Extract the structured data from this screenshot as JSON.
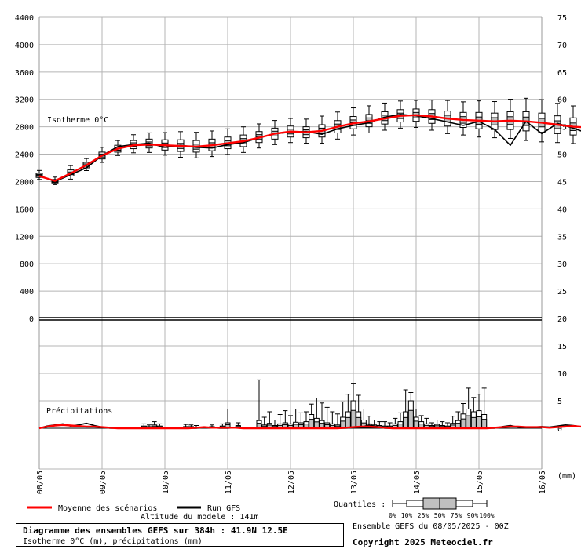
{
  "chart_data": {
    "type": "line",
    "left_axis_ticks": [
      "4400",
      "4000",
      "3600",
      "3200",
      "2800",
      "2400",
      "2000",
      "1600",
      "1200",
      "800",
      "400",
      "0"
    ],
    "right_axis_ticks": [
      "75",
      "70",
      "65",
      "60",
      "55",
      "50",
      "45",
      "40",
      "35",
      "30",
      "25",
      "20",
      "15",
      "10",
      "5",
      "0"
    ],
    "x_tick_labels": [
      "08/05",
      "09/05",
      "10/05",
      "11/05",
      "12/05",
      "13/05",
      "14/05",
      "15/05",
      "16/05"
    ],
    "x_unit": "(mm)",
    "iso_label": "Isotherme 0°C",
    "precip_label": "Précipitations",
    "iso_range": [
      0,
      4400
    ],
    "precip_range": [
      0,
      20
    ],
    "iso_step_hours": 6,
    "iso_mean": [
      2080,
      2010,
      2120,
      2240,
      2380,
      2480,
      2530,
      2540,
      2530,
      2520,
      2510,
      2530,
      2560,
      2590,
      2640,
      2700,
      2730,
      2720,
      2740,
      2800,
      2850,
      2880,
      2920,
      2960,
      2970,
      2950,
      2920,
      2900,
      2890,
      2880,
      2890,
      2880,
      2860,
      2830,
      2800,
      2790,
      2800,
      2800,
      2800,
      2790,
      2780,
      2760,
      2720,
      2690,
      2690,
      2710,
      2730,
      2750,
      2760,
      2760,
      2750,
      2740,
      2750,
      2760,
      2780,
      2800,
      2820,
      2840,
      2830,
      2790,
      2750,
      2720,
      2710,
      2710,
      2720,
      2710,
      2700,
      2680
    ],
    "iso_run": [
      2090,
      2000,
      2100,
      2200,
      2380,
      2510,
      2540,
      2560,
      2500,
      2530,
      2500,
      2490,
      2540,
      2570,
      2640,
      2700,
      2720,
      2730,
      2690,
      2770,
      2820,
      2860,
      2940,
      2980,
      2960,
      2920,
      2870,
      2820,
      2880,
      2760,
      2530,
      2880,
      2700,
      2850,
      2780,
      2700,
      2790,
      2760,
      2740,
      2740,
      2720,
      2700,
      2640,
      2550,
      2490,
      2550,
      2580,
      2650,
      2700,
      2800,
      2870,
      2840,
      2850,
      2720,
      2800,
      2920,
      2960,
      3050,
      2960,
      3000,
      2860,
      2680,
      2530,
      2500,
      2540,
      2560,
      2560,
      2560
    ],
    "iso_boxes": [
      [
        2090,
        2060,
        2120
      ],
      [
        2000,
        1980,
        2030
      ],
      [
        2120,
        2080,
        2170
      ],
      [
        2240,
        2200,
        2280
      ],
      [
        2380,
        2330,
        2430
      ],
      [
        2480,
        2430,
        2530
      ],
      [
        2540,
        2480,
        2600
      ],
      [
        2550,
        2490,
        2620
      ],
      [
        2530,
        2460,
        2610
      ],
      [
        2520,
        2440,
        2610
      ],
      [
        2510,
        2430,
        2600
      ],
      [
        2530,
        2450,
        2620
      ],
      [
        2560,
        2480,
        2650
      ],
      [
        2590,
        2510,
        2680
      ],
      [
        2650,
        2570,
        2730
      ],
      [
        2700,
        2620,
        2780
      ],
      [
        2730,
        2650,
        2810
      ],
      [
        2720,
        2640,
        2800
      ],
      [
        2740,
        2650,
        2830
      ],
      [
        2800,
        2710,
        2890
      ],
      [
        2860,
        2770,
        2950
      ],
      [
        2890,
        2800,
        2980
      ],
      [
        2930,
        2840,
        3020
      ],
      [
        2960,
        2870,
        3050
      ],
      [
        2970,
        2880,
        3060
      ],
      [
        2950,
        2850,
        3050
      ],
      [
        2920,
        2810,
        3030
      ],
      [
        2900,
        2790,
        3010
      ],
      [
        2890,
        2770,
        3010
      ],
      [
        2880,
        2760,
        3000
      ],
      [
        2890,
        2760,
        3020
      ],
      [
        2880,
        2740,
        3020
      ],
      [
        2860,
        2720,
        3000
      ],
      [
        2830,
        2700,
        2960
      ],
      [
        2800,
        2680,
        2930
      ],
      [
        2790,
        2670,
        2910
      ],
      [
        2800,
        2680,
        2920
      ],
      [
        2800,
        2680,
        2920
      ],
      [
        2800,
        2670,
        2930
      ],
      [
        2790,
        2660,
        2920
      ],
      [
        2780,
        2650,
        2910
      ],
      [
        2760,
        2620,
        2900
      ],
      [
        2720,
        2580,
        2860
      ],
      [
        2690,
        2540,
        2840
      ],
      [
        2690,
        2530,
        2850
      ],
      [
        2710,
        2540,
        2880
      ],
      [
        2730,
        2550,
        2910
      ],
      [
        2750,
        2560,
        2940
      ],
      [
        2760,
        2560,
        2960
      ],
      [
        2760,
        2550,
        2970
      ],
      [
        2750,
        2530,
        2970
      ],
      [
        2740,
        2520,
        2960
      ],
      [
        2750,
        2520,
        2980
      ],
      [
        2760,
        2530,
        2990
      ],
      [
        2780,
        2550,
        3010
      ],
      [
        2800,
        2570,
        3030
      ],
      [
        2820,
        2590,
        3050
      ],
      [
        2840,
        2610,
        3070
      ],
      [
        2830,
        2590,
        3070
      ],
      [
        2790,
        2550,
        3030
      ],
      [
        2750,
        2510,
        2990
      ],
      [
        2720,
        2480,
        2960
      ],
      [
        2710,
        2460,
        2960
      ],
      [
        2710,
        2460,
        2960
      ],
      [
        2720,
        2470,
        2970
      ],
      [
        2710,
        2460,
        2960
      ],
      [
        2700,
        2450,
        2950
      ],
      [
        2680,
        2430,
        2930
      ]
    ],
    "precip_step_hours": 3,
    "precip_mean": [
      0,
      0.3,
      0.5,
      0.6,
      0.5,
      0.4,
      0.3,
      0.3,
      0.2,
      0.1,
      0,
      0,
      0,
      0,
      0,
      0,
      0,
      0,
      0,
      0,
      0.1,
      0.2,
      0.1,
      0.1,
      0.1,
      0.1,
      0,
      0,
      0,
      0,
      0,
      0,
      0,
      0,
      0,
      0,
      0,
      0,
      0,
      0.1,
      0.2,
      0.3,
      0.3,
      0.2,
      0.1,
      0,
      0,
      0,
      0,
      0,
      0,
      0,
      0,
      0,
      0,
      0,
      0,
      0,
      0.1,
      0.2,
      0.3,
      0.3,
      0.2,
      0.2,
      0.2,
      0.1,
      0.2,
      0.3,
      0.4,
      0.3,
      0.3,
      0.2,
      0.3,
      0.5,
      0.8,
      1.0,
      0.9,
      0.7,
      0.4,
      0.3,
      0.3,
      0.3,
      0.3,
      0.3,
      0.3,
      0.2,
      0.3,
      0.6,
      1.6,
      1.9,
      1.2,
      0.6,
      0.3,
      0.2,
      0.1,
      0.1,
      0.1,
      0.1,
      0.2,
      0.3,
      0.5,
      0.9,
      1.2,
      0.8,
      0.5,
      0.3,
      0.1,
      0.1,
      0,
      0,
      0,
      0.1,
      0.2,
      0.5,
      1.0,
      1.3,
      1.1,
      0.8,
      0.5,
      0.3,
      0.2
    ],
    "precip_run": [
      0,
      0.4,
      0.6,
      0.8,
      0.4,
      0.6,
      0.9,
      0.5,
      0.2,
      0,
      0,
      0,
      0,
      0,
      0,
      0,
      0,
      0,
      0,
      0,
      0,
      0.2,
      0.1,
      0,
      0,
      0.1,
      0,
      0,
      0,
      0,
      0,
      0,
      0,
      0,
      0,
      0,
      0,
      0,
      0,
      0,
      0.1,
      0.2,
      0.6,
      0.3,
      0,
      0,
      0,
      0,
      0,
      0,
      0,
      0,
      0,
      0,
      0,
      0,
      0,
      0,
      0,
      0.3,
      0.5,
      0.2,
      0.1,
      0.2,
      0.3,
      0.2,
      0.4,
      0.6,
      0.5,
      0.3,
      0.2,
      0.1,
      0.3,
      0.8,
      1.5,
      2.2,
      1.6,
      0.6,
      0.3,
      0.3,
      0.3,
      0.3,
      0.2,
      0.2,
      0.1,
      0.1,
      0.4,
      1.0,
      2.0,
      3.2,
      3.0,
      2.0,
      1.2,
      0.5,
      0.2,
      0.1,
      0,
      0.1,
      0.2,
      0.4,
      0.6,
      1.0,
      1.3,
      0.7,
      0.4,
      0.2,
      0,
      0,
      0,
      0,
      0,
      0,
      0.3,
      0.8,
      2.4,
      3.3,
      1.6,
      0.8,
      0.3,
      0.3
    ],
    "precip_boxes": [
      [
        40,
        0.8,
        0,
        0.4
      ],
      [
        42,
        0.6,
        0,
        0.3
      ],
      [
        44,
        1.2,
        0,
        0.6
      ],
      [
        46,
        0.8,
        0,
        0.4
      ],
      [
        56,
        0.7,
        0,
        0.3
      ],
      [
        58,
        0.6,
        0,
        0.3
      ],
      [
        60,
        0.5,
        0,
        0.2
      ],
      [
        66,
        0.6,
        0,
        0.3
      ],
      [
        70,
        0.8,
        0,
        0.4
      ],
      [
        72,
        3.5,
        0,
        1.0
      ],
      [
        76,
        1.0,
        0,
        0.5
      ],
      [
        84,
        8.8,
        0,
        1.4
      ],
      [
        86,
        2.0,
        0,
        0.6
      ],
      [
        88,
        3.0,
        0,
        0.9
      ],
      [
        90,
        1.5,
        0,
        0.5
      ],
      [
        92,
        2.5,
        0,
        0.8
      ],
      [
        94,
        3.2,
        0,
        1.0
      ],
      [
        96,
        2.3,
        0,
        0.8
      ],
      [
        98,
        3.5,
        0,
        1.1
      ],
      [
        100,
        2.8,
        0,
        1.0
      ],
      [
        102,
        3.0,
        0,
        1.2
      ],
      [
        104,
        4.4,
        0,
        2.5
      ],
      [
        106,
        5.5,
        0,
        1.8
      ],
      [
        108,
        4.6,
        0,
        1.4
      ],
      [
        110,
        3.8,
        0,
        1.0
      ],
      [
        112,
        3.0,
        0,
        0.8
      ],
      [
        114,
        2.6,
        0,
        0.6
      ],
      [
        116,
        4.8,
        0,
        2.0
      ],
      [
        118,
        6.2,
        0,
        3.0
      ],
      [
        120,
        8.2,
        0,
        5.0
      ],
      [
        122,
        6.0,
        0,
        3.0
      ],
      [
        124,
        3.5,
        0,
        1.5
      ],
      [
        126,
        2.2,
        0,
        0.8
      ],
      [
        128,
        1.5,
        0,
        0.6
      ],
      [
        130,
        1.2,
        0,
        0.5
      ],
      [
        132,
        1.2,
        0,
        0.4
      ],
      [
        134,
        1.0,
        0,
        0.4
      ],
      [
        136,
        1.8,
        0,
        0.8
      ],
      [
        138,
        2.8,
        0,
        1.2
      ],
      [
        140,
        7.0,
        0,
        3.0
      ],
      [
        142,
        6.5,
        0,
        5.0
      ],
      [
        144,
        3.5,
        0,
        2.0
      ],
      [
        146,
        2.3,
        0,
        1.2
      ],
      [
        148,
        1.8,
        0,
        0.8
      ],
      [
        150,
        1.0,
        0,
        0.5
      ],
      [
        152,
        1.5,
        0,
        0.7
      ],
      [
        154,
        1.2,
        0,
        0.5
      ],
      [
        156,
        1.0,
        0,
        0.4
      ],
      [
        158,
        2.2,
        0,
        0.9
      ],
      [
        160,
        3.0,
        0,
        1.4
      ],
      [
        162,
        4.5,
        0,
        2.6
      ],
      [
        164,
        7.3,
        0,
        3.5
      ],
      [
        166,
        5.6,
        0,
        3.0
      ],
      [
        168,
        6.2,
        0,
        3.2
      ],
      [
        170,
        7.3,
        0,
        2.5
      ]
    ],
    "legend": [
      {
        "name": "Moyenne des scénarios",
        "color": "#ff0000"
      },
      {
        "name": "Run GFS",
        "color": "#000000"
      }
    ],
    "quantiles_label": "Quantiles :",
    "quantile_ticks": [
      "0%",
      "10%",
      "25%",
      "50%",
      "75%",
      "90%",
      "100%"
    ]
  },
  "footer": {
    "altitude": "Altitude du modele : 141m",
    "title": "Diagramme des ensembles GEFS sur 384h : 41.9N 12.5E",
    "subtitle": "Isotherme 0°C (m), précipitations (mm)",
    "ensemble": "Ensemble GEFS du 08/05/2025 - 00Z",
    "copyright": "Copyright 2025 Meteociel.fr"
  },
  "colors": {
    "mean": "#ff0000",
    "run": "#000000",
    "box_fill": "#c0c0c0",
    "grid": "#b4b4b4"
  }
}
